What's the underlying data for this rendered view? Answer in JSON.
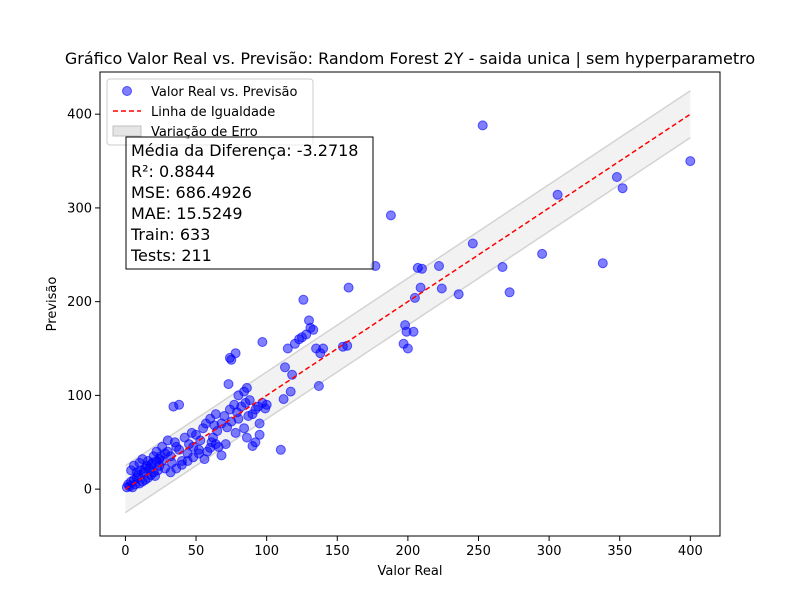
{
  "chart_data": {
    "type": "scatter",
    "title": "Gráfico Valor Real vs. Previsão: Random Forest 2Y - saida unica | sem hyperparametro",
    "xlabel": "Valor Real",
    "ylabel": "Previsão",
    "xlim": [
      -18,
      421
    ],
    "ylim": [
      -50,
      445
    ],
    "xticks": [
      0,
      50,
      100,
      150,
      200,
      250,
      300,
      350,
      400
    ],
    "yticks": [
      0,
      100,
      200,
      300,
      400
    ],
    "grid": false,
    "legend_position": "top-left",
    "legend": [
      {
        "label": "Valor Real vs. Previsão",
        "kind": "marker",
        "color": "#0000ff"
      },
      {
        "label": "Linha de Igualdade",
        "kind": "dashed-line",
        "color": "#ff0000"
      },
      {
        "label": "Variação de Erro",
        "kind": "band",
        "color": "#d3d3d3"
      }
    ],
    "stats_box": [
      "Média da Diferença: -3.2718",
      "R²: 0.8844",
      "MSE: 686.4926",
      "MAE: 15.5249",
      "Train: 633",
      "Tests: 211"
    ],
    "identity_line": {
      "from": 0,
      "to": 400,
      "color": "#ff0000"
    },
    "error_band": {
      "offset": 25,
      "color": "#d3d3d3"
    },
    "series": [
      {
        "name": "Valor Real vs. Previsão",
        "color": "#0000ff",
        "points": [
          [
            1,
            2
          ],
          [
            2,
            5
          ],
          [
            3,
            3
          ],
          [
            4,
            8
          ],
          [
            5,
            2
          ],
          [
            6,
            10
          ],
          [
            7,
            5
          ],
          [
            8,
            12
          ],
          [
            9,
            15
          ],
          [
            10,
            6
          ],
          [
            11,
            20
          ],
          [
            12,
            8
          ],
          [
            13,
            18
          ],
          [
            14,
            10
          ],
          [
            15,
            25
          ],
          [
            16,
            12
          ],
          [
            17,
            22
          ],
          [
            18,
            15
          ],
          [
            19,
            28
          ],
          [
            20,
            18
          ],
          [
            21,
            14
          ],
          [
            22,
            30
          ],
          [
            23,
            20
          ],
          [
            24,
            25
          ],
          [
            25,
            35
          ],
          [
            26,
            30
          ],
          [
            28,
            22
          ],
          [
            30,
            40
          ],
          [
            32,
            35
          ],
          [
            33,
            28
          ],
          [
            35,
            50
          ],
          [
            36,
            45
          ],
          [
            38,
            42
          ],
          [
            40,
            30
          ],
          [
            42,
            55
          ],
          [
            44,
            38
          ],
          [
            45,
            48
          ],
          [
            47,
            60
          ],
          [
            48,
            45
          ],
          [
            50,
            58
          ],
          [
            52,
            42
          ],
          [
            53,
            52
          ],
          [
            55,
            65
          ],
          [
            57,
            70
          ],
          [
            58,
            40
          ],
          [
            60,
            75
          ],
          [
            61,
            50
          ],
          [
            62,
            55
          ],
          [
            63,
            68
          ],
          [
            64,
            80
          ],
          [
            65,
            62
          ],
          [
            66,
            45
          ],
          [
            68,
            70
          ],
          [
            70,
            78
          ],
          [
            71,
            48
          ],
          [
            72,
            66
          ],
          [
            74,
            85
          ],
          [
            75,
            72
          ],
          [
            77,
            90
          ],
          [
            78,
            60
          ],
          [
            79,
            82
          ],
          [
            80,
            75
          ],
          [
            82,
            88
          ],
          [
            84,
            65
          ],
          [
            85,
            92
          ],
          [
            86,
            55
          ],
          [
            87,
            78
          ],
          [
            88,
            95
          ],
          [
            90,
            80
          ],
          [
            92,
            85
          ],
          [
            94,
            88
          ],
          [
            95,
            70
          ],
          [
            97,
            92
          ],
          [
            99,
            86
          ],
          [
            100,
            90
          ],
          [
            4,
            20
          ],
          [
            6,
            25
          ],
          [
            8,
            18
          ],
          [
            10,
            28
          ],
          [
            12,
            32
          ],
          [
            14,
            22
          ],
          [
            16,
            30
          ],
          [
            18,
            26
          ],
          [
            20,
            35
          ],
          [
            22,
            40
          ],
          [
            24,
            32
          ],
          [
            26,
            45
          ],
          [
            28,
            38
          ],
          [
            30,
            52
          ],
          [
            34,
            88
          ],
          [
            38,
            90
          ],
          [
            32,
            18
          ],
          [
            36,
            22
          ],
          [
            40,
            26
          ],
          [
            44,
            30
          ],
          [
            48,
            34
          ],
          [
            52,
            38
          ],
          [
            56,
            32
          ],
          [
            60,
            44
          ],
          [
            64,
            48
          ],
          [
            68,
            36
          ],
          [
            73,
            112
          ],
          [
            74,
            140
          ],
          [
            75,
            138
          ],
          [
            78,
            145
          ],
          [
            80,
            100
          ],
          [
            84,
            104
          ],
          [
            86,
            108
          ],
          [
            90,
            46
          ],
          [
            92,
            50
          ],
          [
            95,
            58
          ],
          [
            97,
            157
          ],
          [
            110,
            42
          ],
          [
            112,
            96
          ],
          [
            113,
            130
          ],
          [
            115,
            150
          ],
          [
            117,
            104
          ],
          [
            118,
            122
          ],
          [
            120,
            155
          ],
          [
            123,
            160
          ],
          [
            125,
            162
          ],
          [
            126,
            202
          ],
          [
            128,
            165
          ],
          [
            130,
            180
          ],
          [
            131,
            172
          ],
          [
            133,
            170
          ],
          [
            135,
            150
          ],
          [
            137,
            110
          ],
          [
            138,
            145
          ],
          [
            140,
            150
          ],
          [
            154,
            152
          ],
          [
            157,
            153
          ],
          [
            158,
            215
          ],
          [
            177,
            238
          ],
          [
            188,
            292
          ],
          [
            197,
            155
          ],
          [
            198,
            175
          ],
          [
            199,
            168
          ],
          [
            200,
            150
          ],
          [
            204,
            168
          ],
          [
            205,
            204
          ],
          [
            207,
            236
          ],
          [
            209,
            215
          ],
          [
            210,
            235
          ],
          [
            222,
            238
          ],
          [
            224,
            214
          ],
          [
            236,
            208
          ],
          [
            246,
            262
          ],
          [
            253,
            388
          ],
          [
            267,
            237
          ],
          [
            272,
            210
          ],
          [
            295,
            251
          ],
          [
            306,
            314
          ],
          [
            338,
            241
          ],
          [
            348,
            333
          ],
          [
            352,
            321
          ],
          [
            400,
            350
          ]
        ]
      }
    ]
  }
}
